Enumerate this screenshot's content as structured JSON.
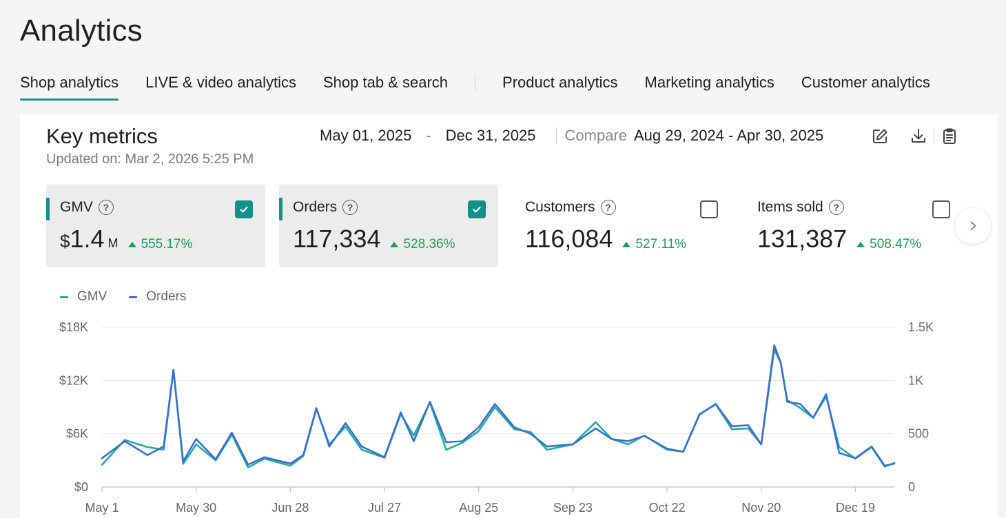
{
  "page": {
    "title": "Analytics"
  },
  "tabs": [
    {
      "label": "Shop analytics",
      "active": true
    },
    {
      "label": "LIVE & video analytics",
      "active": false
    },
    {
      "label": "Shop tab & search",
      "active": false
    },
    {
      "label": "Product analytics",
      "active": false
    },
    {
      "label": "Marketing analytics",
      "active": false
    },
    {
      "label": "Customer analytics",
      "active": false
    }
  ],
  "key_metrics": {
    "title": "Key metrics",
    "updated": "Updated on: Mar 2, 2026 5:25 PM",
    "date_start": "May 01, 2025",
    "date_sep": "-",
    "date_end": "Dec 31, 2025",
    "compare_label": "Compare",
    "compare_range": "Aug 29, 2024 - Apr 30, 2025",
    "icons": [
      "edit-icon",
      "download-icon",
      "report-icon"
    ]
  },
  "metrics": [
    {
      "label": "GMV",
      "currency": "$",
      "value": "1.4",
      "suffix": "M",
      "change": "555.17%",
      "selected": true
    },
    {
      "label": "Orders",
      "currency": "",
      "value": "117,334",
      "suffix": "",
      "change": "528.36%",
      "selected": true
    },
    {
      "label": "Customers",
      "currency": "",
      "value": "116,084",
      "suffix": "",
      "change": "527.11%",
      "selected": false
    },
    {
      "label": "Items sold",
      "currency": "",
      "value": "131,387",
      "suffix": "",
      "change": "508.47%",
      "selected": false
    }
  ],
  "colors": {
    "accent": "#12918b",
    "positive": "#1e9e52",
    "gmv_line": "#1fae9b",
    "orders_line": "#3a6fd0"
  },
  "chart_data": {
    "type": "line",
    "legend": [
      {
        "name": "GMV",
        "color": "#1fae9b"
      },
      {
        "name": "Orders",
        "color": "#3a6fd0"
      }
    ],
    "legend_position": "top-left",
    "x_ticks": [
      "May 1",
      "May 30",
      "Jun 28",
      "Jul 27",
      "Aug 25",
      "Sep 23",
      "Oct 22",
      "Nov 20",
      "Dec 19"
    ],
    "y_left": {
      "ticks": [
        "$0",
        "$6K",
        "$12K",
        "$18K"
      ],
      "range": [
        0,
        18000
      ]
    },
    "y_right": {
      "ticks": [
        "0",
        "500",
        "1K",
        "1.5K"
      ],
      "range": [
        0,
        1500
      ]
    },
    "grid": true,
    "x_range": [
      "2025-05-01",
      "2025-12-31"
    ],
    "series": [
      {
        "name": "GMV",
        "axis": "left",
        "x": [
          "2025-05-01",
          "2025-05-08",
          "2025-05-15",
          "2025-05-20",
          "2025-05-23",
          "2025-05-26",
          "2025-05-30",
          "2025-06-05",
          "2025-06-10",
          "2025-06-15",
          "2025-06-20",
          "2025-06-28",
          "2025-07-02",
          "2025-07-06",
          "2025-07-10",
          "2025-07-15",
          "2025-07-20",
          "2025-07-27",
          "2025-08-01",
          "2025-08-05",
          "2025-08-10",
          "2025-08-15",
          "2025-08-20",
          "2025-08-25",
          "2025-08-30",
          "2025-09-05",
          "2025-09-10",
          "2025-09-15",
          "2025-09-23",
          "2025-09-30",
          "2025-10-05",
          "2025-10-10",
          "2025-10-15",
          "2025-10-22",
          "2025-10-27",
          "2025-11-01",
          "2025-11-06",
          "2025-11-11",
          "2025-11-16",
          "2025-11-20",
          "2025-11-24",
          "2025-11-26",
          "2025-11-28",
          "2025-12-02",
          "2025-12-06",
          "2025-12-10",
          "2025-12-14",
          "2025-12-19",
          "2025-12-24",
          "2025-12-28",
          "2025-12-31"
        ],
        "y": [
          2500,
          5300,
          4500,
          4200,
          13200,
          2600,
          4800,
          3000,
          5900,
          2200,
          3200,
          2400,
          3500,
          8800,
          4800,
          6800,
          4200,
          3300,
          8200,
          5800,
          9500,
          4200,
          5000,
          6300,
          9000,
          6500,
          6200,
          4200,
          4800,
          7300,
          5400,
          4800,
          5800,
          4200,
          4000,
          8200,
          9300,
          6500,
          6600,
          4800,
          15500,
          14000,
          9800,
          8900,
          7800,
          10200,
          4500,
          3200,
          4500,
          2300,
          2700
        ]
      },
      {
        "name": "Orders",
        "axis": "right",
        "x": [
          "2025-05-01",
          "2025-05-08",
          "2025-05-15",
          "2025-05-20",
          "2025-05-23",
          "2025-05-26",
          "2025-05-30",
          "2025-06-05",
          "2025-06-10",
          "2025-06-15",
          "2025-06-20",
          "2025-06-28",
          "2025-07-02",
          "2025-07-06",
          "2025-07-10",
          "2025-07-15",
          "2025-07-20",
          "2025-07-27",
          "2025-08-01",
          "2025-08-05",
          "2025-08-10",
          "2025-08-15",
          "2025-08-20",
          "2025-08-25",
          "2025-08-30",
          "2025-09-05",
          "2025-09-10",
          "2025-09-15",
          "2025-09-23",
          "2025-09-30",
          "2025-10-05",
          "2025-10-10",
          "2025-10-15",
          "2025-10-22",
          "2025-10-27",
          "2025-11-01",
          "2025-11-06",
          "2025-11-11",
          "2025-11-16",
          "2025-11-20",
          "2025-11-24",
          "2025-11-26",
          "2025-11-28",
          "2025-12-02",
          "2025-12-06",
          "2025-12-10",
          "2025-12-14",
          "2025-12-19",
          "2025-12-24",
          "2025-12-28",
          "2025-12-31"
        ],
        "y": [
          270,
          430,
          300,
          380,
          1100,
          240,
          450,
          260,
          510,
          210,
          280,
          220,
          300,
          740,
          380,
          600,
          380,
          280,
          700,
          430,
          800,
          420,
          430,
          560,
          780,
          560,
          500,
          380,
          400,
          550,
          450,
          430,
          480,
          360,
          330,
          680,
          780,
          570,
          580,
          400,
          1330,
          1170,
          800,
          780,
          650,
          870,
          320,
          270,
          380,
          200,
          220
        ]
      }
    ]
  }
}
